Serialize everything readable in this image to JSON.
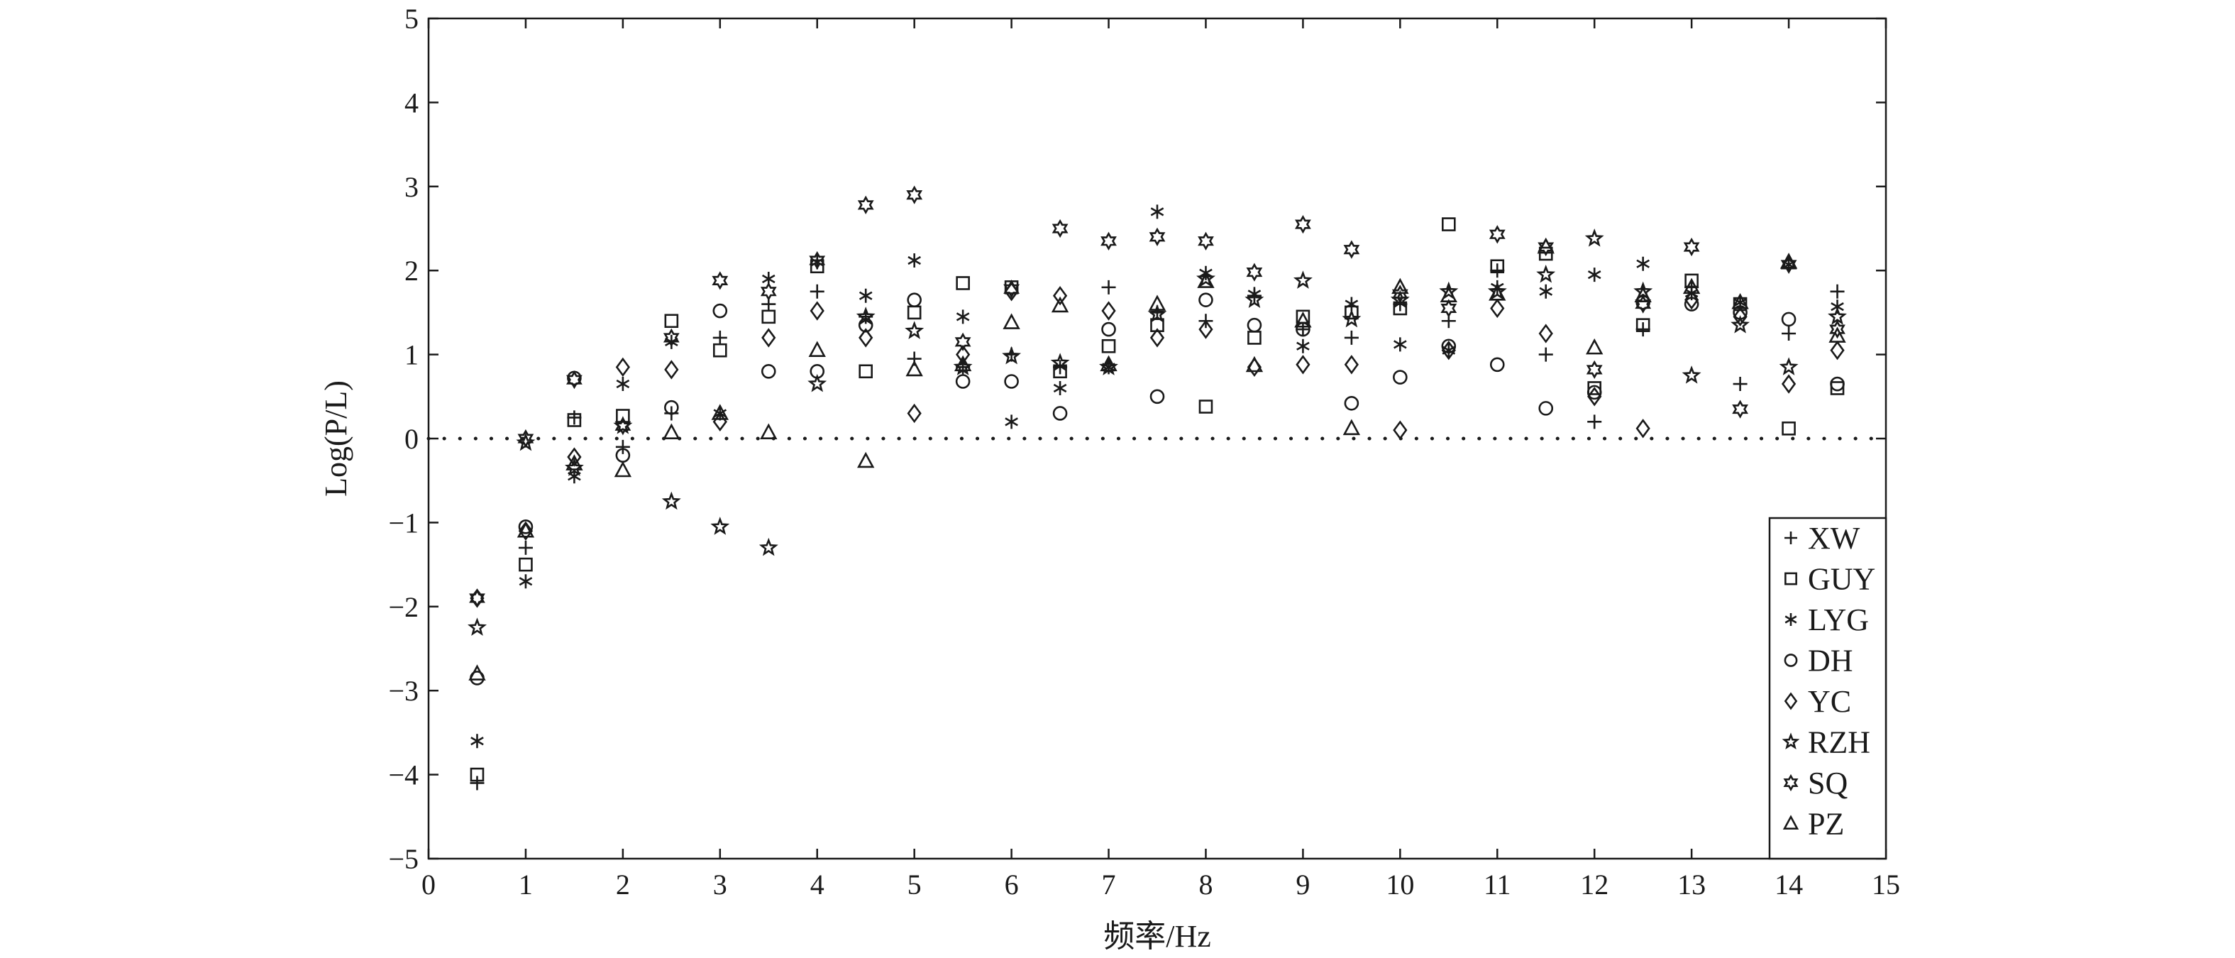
{
  "chart_data": {
    "type": "scatter",
    "title": "",
    "xlabel": "频率/Hz",
    "ylabel": "Log(P/L)",
    "xlim": [
      0,
      15
    ],
    "ylim": [
      -5,
      5
    ],
    "x_ticks": [
      "0",
      "1",
      "2",
      "3",
      "4",
      "5",
      "6",
      "7",
      "8",
      "9",
      "10",
      "11",
      "12",
      "13",
      "14",
      "15"
    ],
    "y_ticks": [
      "5",
      "4",
      "3",
      "2",
      "1",
      "0",
      "−1",
      "−2",
      "−3",
      "−4",
      "−5"
    ],
    "grid": false,
    "reference_line": {
      "y": 0,
      "style": "dotted"
    },
    "legend_position": "bottom-right",
    "x": [
      0.5,
      1,
      1.5,
      2,
      2.5,
      3,
      3.5,
      4,
      4.5,
      5,
      5.5,
      6,
      6.5,
      7,
      7.5,
      8,
      8.5,
      9,
      9.5,
      10,
      10.5,
      11,
      11.5,
      12,
      12.5,
      13,
      13.5,
      14,
      14.5
    ],
    "series": [
      {
        "name": "XW",
        "marker": "plus",
        "values": [
          -4.1,
          -1.3,
          0.25,
          -0.1,
          0.3,
          1.2,
          1.6,
          1.75,
          1.45,
          0.95,
          0.85,
          1.0,
          0.85,
          1.8,
          1.5,
          1.4,
          1.7,
          1.3,
          1.2,
          1.6,
          1.4,
          2.0,
          1.0,
          0.2,
          1.3,
          1.8,
          0.65,
          1.25,
          1.75
        ]
      },
      {
        "name": "GUY",
        "marker": "square",
        "values": [
          -4.0,
          -1.5,
          0.22,
          0.27,
          1.4,
          1.05,
          1.45,
          2.05,
          0.8,
          1.5,
          1.85,
          1.8,
          0.8,
          1.1,
          1.35,
          0.38,
          1.2,
          1.45,
          1.5,
          1.55,
          2.55,
          2.05,
          2.2,
          0.6,
          1.35,
          1.88,
          1.6,
          0.12,
          0.6
        ]
      },
      {
        "name": "LYG",
        "marker": "asterisk",
        "values": [
          -3.6,
          -1.7,
          -0.45,
          0.65,
          1.15,
          0.3,
          1.9,
          2.1,
          1.7,
          2.12,
          1.45,
          0.2,
          0.6,
          0.85,
          2.7,
          1.97,
          1.72,
          1.1,
          1.6,
          1.12,
          1.05,
          1.8,
          1.75,
          1.95,
          2.08,
          1.73,
          1.62,
          2.07,
          1.57
        ]
      },
      {
        "name": "DH",
        "marker": "circle",
        "values": [
          -2.85,
          -1.05,
          0.72,
          -0.2,
          0.37,
          1.52,
          0.8,
          0.8,
          1.35,
          1.65,
          0.68,
          0.68,
          0.3,
          1.3,
          0.5,
          1.65,
          1.35,
          1.3,
          0.42,
          0.73,
          1.1,
          0.88,
          0.36,
          0.55,
          1.62,
          1.6,
          1.5,
          1.42,
          0.65
        ]
      },
      {
        "name": "YC",
        "marker": "diamond",
        "values": [
          -1.9,
          -1.1,
          -0.22,
          0.85,
          0.82,
          0.2,
          1.2,
          1.52,
          1.2,
          0.3,
          1.0,
          1.75,
          1.7,
          1.52,
          1.2,
          1.3,
          0.85,
          0.88,
          0.88,
          0.1,
          1.05,
          1.55,
          1.25,
          0.5,
          0.12,
          1.65,
          1.45,
          0.65,
          1.05
        ]
      },
      {
        "name": "RZH",
        "marker": "star",
        "values": [
          -2.25,
          -0.05,
          -0.35,
          0.15,
          -0.75,
          -1.05,
          -1.3,
          0.65,
          1.45,
          1.28,
          0.85,
          0.98,
          0.9,
          0.85,
          1.48,
          1.9,
          1.65,
          1.88,
          1.42,
          1.65,
          1.75,
          1.75,
          1.95,
          2.38,
          1.75,
          0.75,
          1.35,
          0.85,
          1.45
        ]
      },
      {
        "name": "SQ",
        "marker": "hexstar",
        "values": [
          -1.9,
          0.0,
          0.7,
          0.15,
          1.2,
          1.88,
          1.75,
          2.12,
          2.78,
          2.9,
          1.15,
          1.78,
          2.5,
          2.35,
          2.4,
          2.35,
          1.98,
          2.55,
          2.25,
          1.72,
          1.55,
          2.43,
          2.28,
          0.82,
          1.6,
          2.28,
          0.35,
          2.07,
          1.3
        ]
      },
      {
        "name": "PZ",
        "marker": "triangle",
        "values": [
          -2.8,
          -1.1,
          -0.3,
          -0.38,
          0.07,
          0.3,
          0.07,
          1.05,
          -0.27,
          0.82,
          0.88,
          1.38,
          1.58,
          0.88,
          1.6,
          1.87,
          0.87,
          1.4,
          0.12,
          1.8,
          1.7,
          1.72,
          2.28,
          1.08,
          1.7,
          1.8,
          1.62,
          2.1,
          1.22
        ]
      }
    ]
  }
}
